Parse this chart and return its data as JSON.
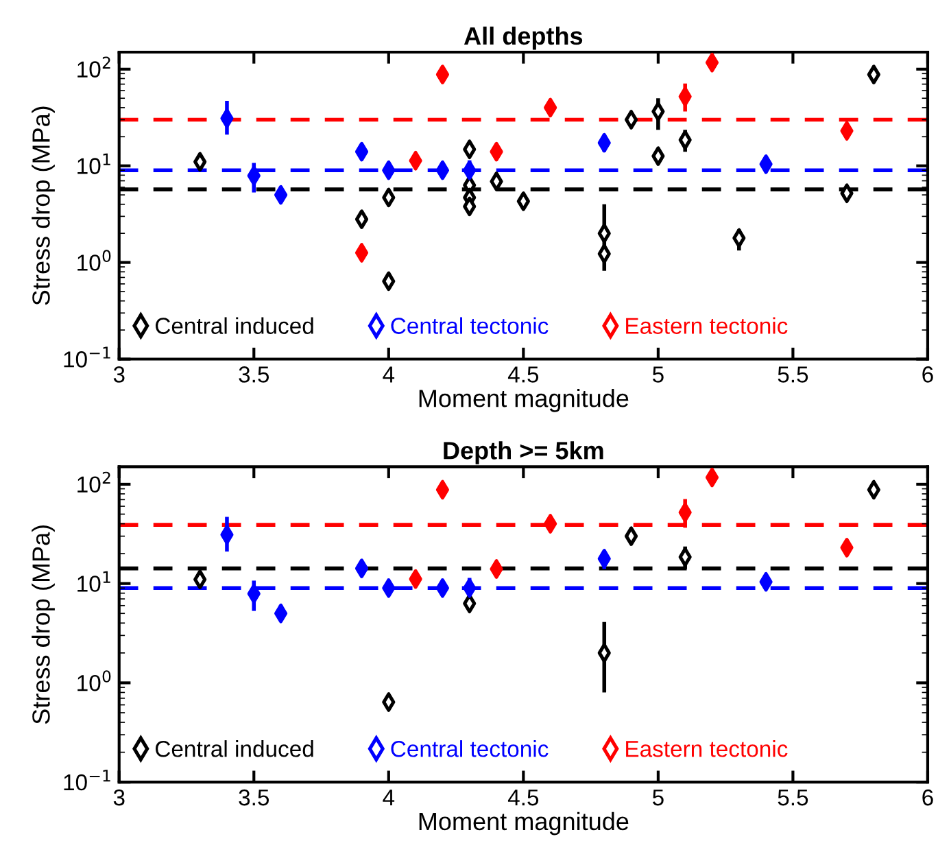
{
  "chart_data": [
    {
      "type": "scatter",
      "title": "All depths",
      "xlabel": "Moment magnitude",
      "ylabel": "Stress drop (MPa)",
      "log": "y",
      "marker": "diamond",
      "legend": "bottom",
      "grid": false,
      "xlim": [
        3,
        6
      ],
      "xticks": [
        3,
        3.5,
        4,
        4.5,
        5,
        5.5,
        6
      ],
      "ylim": [
        0.1,
        150
      ],
      "yticks": [
        {
          "value": 0.1,
          "label": "10$^{−1}$"
        },
        {
          "value": 1,
          "label": "10$^{0}$"
        },
        {
          "value": 10,
          "label": "10$^{1}$"
        },
        {
          "value": 100,
          "label": "10$^{2}$"
        }
      ],
      "series": [
        {
          "name": "Central induced",
          "color": "#000000",
          "x": [
            3.3,
            3.9,
            4.0,
            4.0,
            4.3,
            4.3,
            4.3,
            4.3,
            4.4,
            4.5,
            4.8,
            4.8,
            4.9,
            5.0,
            5.0,
            5.1,
            5.3,
            5.7,
            5.8
          ],
          "values": [
            11,
            2.8,
            4.7,
            0.64,
            14.8,
            6.3,
            4.7,
            3.8,
            6.9,
            4.3,
            2.0,
            1.23,
            30,
            36.5,
            12.6,
            18.5,
            1.79,
            5.2,
            88
          ],
          "errors": [
            null,
            null,
            null,
            null,
            null,
            null,
            null,
            null,
            null,
            null,
            [
              0.82,
              4.0
            ],
            null,
            null,
            [
              23.6,
              50
            ],
            null,
            [
              14,
              23.6
            ],
            [
              1.33,
              2.2
            ],
            null,
            null
          ]
        },
        {
          "name": "Central tectonic",
          "color": "#0000ff",
          "x": [
            3.4,
            3.5,
            3.6,
            3.9,
            4.0,
            4.2,
            4.3,
            4.8,
            5.4
          ],
          "values": [
            31,
            7.9,
            5.0,
            14.0,
            9.0,
            9.0,
            9.0,
            17.3,
            10.4
          ],
          "errors": [
            [
              21,
              47
            ],
            [
              5.3,
              10.7
            ],
            [
              4.2,
              6.1
            ],
            null,
            null,
            null,
            [
              7.3,
              11.4
            ],
            [
              14,
              21
            ],
            null
          ]
        },
        {
          "name": "Eastern tectonic",
          "color": "#ff0000",
          "x": [
            3.9,
            4.1,
            4.2,
            4.4,
            4.6,
            5.1,
            5.2,
            5.7
          ],
          "values": [
            1.26,
            11.3,
            88,
            14.0,
            40,
            52,
            117,
            23
          ],
          "errors": [
            null,
            null,
            null,
            null,
            null,
            [
              36.5,
              71
            ],
            null,
            null
          ]
        }
      ],
      "ref_lines": [
        {
          "axis": "y",
          "value": 30,
          "color": "#ff0000",
          "line_style": "dashed"
        },
        {
          "axis": "y",
          "value": 9.0,
          "color": "#0000ff",
          "line_style": "dashed"
        },
        {
          "axis": "y",
          "value": 5.7,
          "color": "#000000",
          "line_style": "dashed"
        }
      ]
    },
    {
      "type": "scatter",
      "title": "Depth >= 5km",
      "xlabel": "Moment magnitude",
      "ylabel": "Stress drop (MPa)",
      "log": "y",
      "marker": "diamond",
      "legend": "bottom",
      "grid": false,
      "xlim": [
        3,
        6
      ],
      "xticks": [
        3,
        3.5,
        4,
        4.5,
        5,
        5.5,
        6
      ],
      "ylim": [
        0.1,
        150
      ],
      "yticks": [
        {
          "value": 0.1,
          "label": "10$^{−1}$"
        },
        {
          "value": 1,
          "label": "10$^{0}$"
        },
        {
          "value": 10,
          "label": "10$^{1}$"
        },
        {
          "value": 100,
          "label": "10$^{2}$"
        }
      ],
      "series": [
        {
          "name": "Central induced",
          "color": "#000000",
          "x": [
            3.3,
            4.0,
            4.3,
            4.8,
            4.9,
            5.1,
            5.8
          ],
          "values": [
            11,
            0.64,
            6.3,
            2.0,
            30,
            18.5,
            88
          ],
          "errors": [
            null,
            null,
            null,
            [
              0.8,
              4.1
            ],
            null,
            [
              14,
              23.6
            ],
            null
          ]
        },
        {
          "name": "Central tectonic",
          "color": "#0000ff",
          "x": [
            3.4,
            3.5,
            3.6,
            3.9,
            4.0,
            4.2,
            4.3,
            4.8,
            5.4
          ],
          "values": [
            31,
            7.9,
            5.0,
            14.2,
            9.0,
            9.0,
            9.0,
            17.8,
            10.4
          ],
          "errors": [
            [
              21,
              47
            ],
            [
              5.3,
              10.7
            ],
            [
              4.2,
              6.1
            ],
            null,
            null,
            null,
            [
              7.3,
              11.4
            ],
            [
              14,
              21
            ],
            null
          ]
        },
        {
          "name": "Eastern tectonic",
          "color": "#ff0000",
          "x": [
            4.1,
            4.2,
            4.4,
            4.6,
            5.1,
            5.2,
            5.7
          ],
          "values": [
            11.1,
            88,
            14.0,
            40,
            52,
            117,
            23
          ],
          "errors": [
            null,
            null,
            null,
            null,
            [
              36.5,
              71
            ],
            null,
            null
          ]
        }
      ],
      "ref_lines": [
        {
          "axis": "y",
          "value": 39,
          "color": "#ff0000",
          "line_style": "dashed"
        },
        {
          "axis": "y",
          "value": 14.2,
          "color": "#000000",
          "line_style": "dashed"
        },
        {
          "axis": "y",
          "value": 9.0,
          "color": "#0000ff",
          "line_style": "dashed"
        }
      ]
    }
  ]
}
